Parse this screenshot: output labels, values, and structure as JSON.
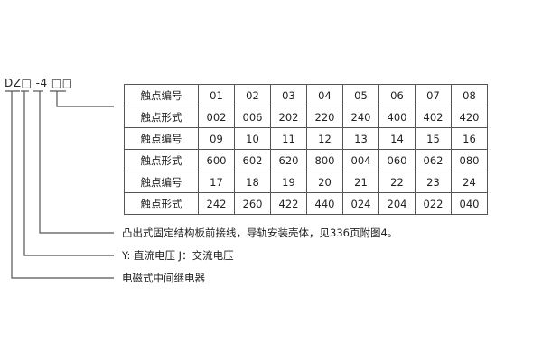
{
  "model_code": "DZ□ -4 □□",
  "table": {
    "rows": [
      {
        "header": "触点编号",
        "cells": [
          "01",
          "02",
          "03",
          "04",
          "05",
          "06",
          "07",
          "08"
        ]
      },
      {
        "header": "触点形式",
        "cells": [
          "002",
          "006",
          "202",
          "220",
          "240",
          "400",
          "402",
          "420"
        ]
      },
      {
        "header": "触点编号",
        "cells": [
          "09",
          "10",
          "11",
          "12",
          "13",
          "14",
          "15",
          "16"
        ]
      },
      {
        "header": "触点形式",
        "cells": [
          "600",
          "602",
          "620",
          "800",
          "004",
          "060",
          "062",
          "080"
        ]
      },
      {
        "header": "触点编号",
        "cells": [
          "17",
          "18",
          "19",
          "20",
          "21",
          "22",
          "23",
          "24"
        ]
      },
      {
        "header": "触点形式",
        "cells": [
          "242",
          "260",
          "422",
          "440",
          "024",
          "204",
          "022",
          "040"
        ]
      }
    ]
  },
  "labels": {
    "mounting": "凸出式固定结构板前接线，导轨安装壳体，见336页附图4。",
    "voltage": "Y: 直流电压   J：交流电压",
    "type": "电磁式中间继电器"
  }
}
